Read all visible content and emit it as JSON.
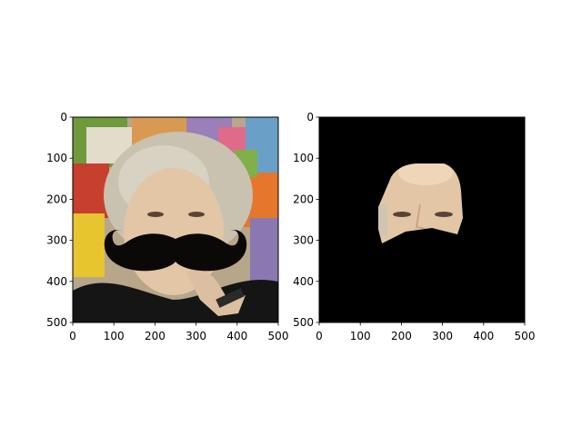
{
  "chart_data": [
    {
      "type": "image",
      "panel": "left",
      "description_free": true,
      "xlim": [
        0,
        500
      ],
      "ylim": [
        500,
        0
      ],
      "x_ticks": [
        0,
        100,
        200,
        300,
        400,
        500
      ],
      "y_ticks": [
        0,
        100,
        200,
        300,
        400,
        500
      ],
      "x_tick_labels": [
        "0",
        "100",
        "200",
        "300",
        "400",
        "500"
      ],
      "y_tick_labels": [
        "0",
        "100",
        "200",
        "300",
        "400",
        "500"
      ],
      "title": "",
      "xlabel": "",
      "ylabel": ""
    },
    {
      "type": "image",
      "panel": "right",
      "xlim": [
        0,
        500
      ],
      "ylim": [
        500,
        0
      ],
      "x_ticks": [
        0,
        100,
        200,
        300,
        400,
        500
      ],
      "y_ticks": [
        0,
        100,
        200,
        300,
        400,
        500
      ],
      "x_tick_labels": [
        "0",
        "100",
        "200",
        "300",
        "400",
        "500"
      ],
      "y_tick_labels": [
        "0",
        "100",
        "200",
        "300",
        "400",
        "500"
      ],
      "title": "",
      "xlabel": "",
      "ylabel": ""
    }
  ],
  "colors": {
    "mask_background": "#000000",
    "skin": "#e3c6a6",
    "hair": "#c9c2b0",
    "mustache": "#0b0908",
    "shirt": "#151515",
    "painting_green": "#6f9a3c",
    "painting_yellow": "#e6c52f",
    "painting_purple": "#8a78b0",
    "painting_red": "#c7402e"
  }
}
